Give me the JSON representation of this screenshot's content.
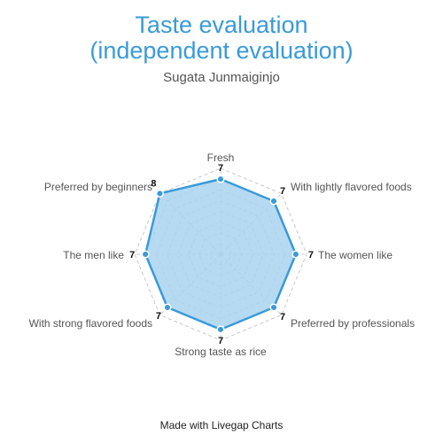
{
  "chart_data": {
    "type": "radar",
    "title_lines": [
      "Taste evaluation",
      "(independent evaluation)"
    ],
    "subtitle": "Sugata Junmaiginjo",
    "categories": [
      "Fresh",
      "With lightly flavored foods",
      "The women like",
      "Preferred by professionals",
      "Strong taste as rice",
      "With strong flavored foods",
      "The men like",
      "Preferred by beginners"
    ],
    "series": [
      {
        "values": [
          7,
          7,
          7,
          7,
          7,
          7,
          7,
          8
        ]
      }
    ],
    "rmax": 8,
    "grid_levels": 8,
    "grid": true,
    "fill_color": "#a9d3f0",
    "line_color": "#3a9ad9",
    "grid_color": "#bbbbbb"
  },
  "footer": "Made with Livegap Charts"
}
